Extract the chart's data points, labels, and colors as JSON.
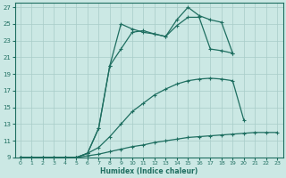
{
  "xlabel": "Humidex (Indice chaleur)",
  "xlim": [
    -0.5,
    23.5
  ],
  "ylim": [
    9,
    27.5
  ],
  "xticks": [
    0,
    1,
    2,
    3,
    4,
    5,
    6,
    7,
    8,
    9,
    10,
    11,
    12,
    13,
    14,
    15,
    16,
    17,
    18,
    19,
    20,
    21,
    22,
    23
  ],
  "yticks": [
    9,
    11,
    13,
    15,
    17,
    19,
    21,
    23,
    25,
    27
  ],
  "background_color": "#cbe8e4",
  "grid_color": "#a8ccc8",
  "line_color": "#1e6e60",
  "line1_x": [
    0,
    1,
    2,
    3,
    4,
    5,
    6,
    7,
    8,
    9,
    10,
    11,
    12,
    13,
    14,
    15,
    16,
    17,
    18,
    19,
    20,
    21,
    22,
    23
  ],
  "line1_y": [
    9,
    9,
    9,
    9,
    9,
    9,
    9.2,
    9.4,
    9.7,
    10.0,
    10.3,
    10.5,
    10.8,
    11.0,
    11.2,
    11.4,
    11.5,
    11.6,
    11.7,
    11.8,
    11.9,
    12.0,
    12.0,
    12.0
  ],
  "line2_x": [
    0,
    1,
    2,
    3,
    4,
    5,
    6,
    7,
    8,
    9,
    10,
    11,
    12,
    13,
    14,
    15,
    16,
    17,
    18,
    19,
    20,
    21,
    22,
    23
  ],
  "line2_y": [
    9,
    9,
    9,
    9,
    9,
    9,
    9.5,
    10.2,
    11.5,
    13.0,
    14.5,
    15.5,
    16.5,
    17.2,
    17.8,
    18.2,
    18.4,
    18.5,
    18.4,
    18.2,
    13.5,
    null,
    null,
    null
  ],
  "line3_x": [
    0,
    1,
    2,
    3,
    4,
    5,
    6,
    7,
    8,
    9,
    10,
    11,
    12,
    13,
    14,
    15,
    16,
    17,
    18,
    19,
    20,
    21,
    22,
    23
  ],
  "line3_y": [
    9,
    9,
    9,
    9,
    9,
    9,
    9.5,
    12.5,
    20.0,
    22.0,
    24.0,
    24.2,
    23.8,
    23.5,
    24.8,
    25.8,
    25.8,
    22.0,
    21.8,
    21.5,
    null,
    null,
    null,
    null
  ],
  "line4_x": [
    0,
    1,
    2,
    3,
    4,
    5,
    6,
    7,
    8,
    9,
    10,
    11,
    12,
    13,
    14,
    15,
    16,
    17,
    18,
    19,
    20,
    21,
    22,
    23
  ],
  "line4_y": [
    9,
    9,
    9,
    9,
    9,
    9,
    9.5,
    12.5,
    20.0,
    25.0,
    24.4,
    24.0,
    23.8,
    23.5,
    25.5,
    27.0,
    26.0,
    25.5,
    25.2,
    21.5,
    null,
    null,
    null,
    null
  ]
}
